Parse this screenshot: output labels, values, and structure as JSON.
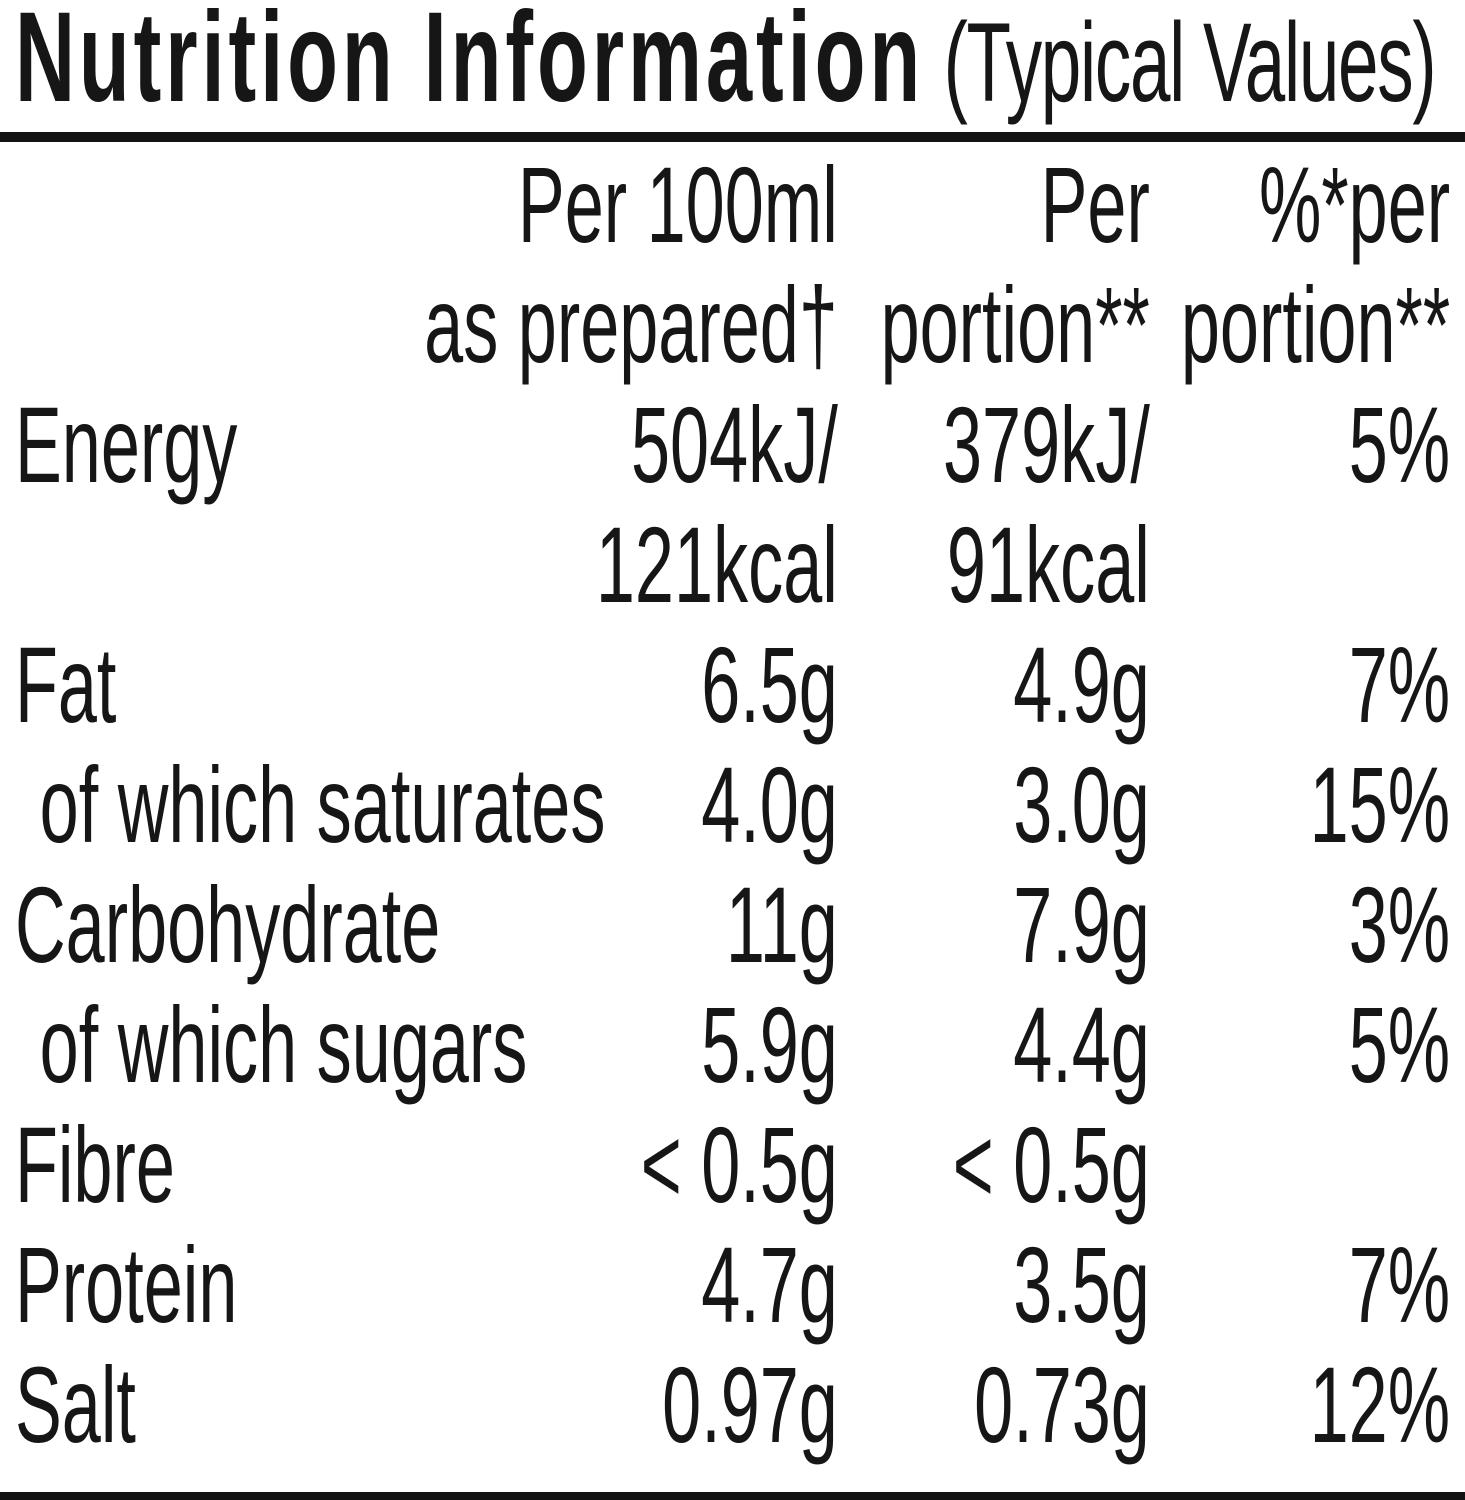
{
  "title": {
    "main": "Nutrition Information",
    "qualifier": "(Typical Values)"
  },
  "header": {
    "per100ml": {
      "line1": "Per 100ml",
      "line2": "as prepared†"
    },
    "portion": {
      "line1": "Per",
      "line2": "portion**"
    },
    "percent": {
      "line1": "%*per",
      "line2": "portion**"
    }
  },
  "rows": [
    {
      "label": "Energy",
      "per100": [
        "504kJ/",
        "121kcal"
      ],
      "portion": [
        "379kJ/",
        "91kcal"
      ],
      "pct": "5%"
    },
    {
      "label": "Fat",
      "per100": [
        "6.5g"
      ],
      "portion": [
        "4.9g"
      ],
      "pct": "7%"
    },
    {
      "label": "of which saturates",
      "per100": [
        "4.0g"
      ],
      "portion": [
        "3.0g"
      ],
      "pct": "15%"
    },
    {
      "label": "Carbohydrate",
      "per100": [
        "11g"
      ],
      "portion": [
        "7.9g"
      ],
      "pct": "3%"
    },
    {
      "label": "of which sugars",
      "per100": [
        "5.9g"
      ],
      "portion": [
        "4.4g"
      ],
      "pct": "5%"
    },
    {
      "label": "Fibre",
      "per100": [
        "< 0.5g"
      ],
      "portion": [
        "< 0.5g"
      ],
      "pct": ""
    },
    {
      "label": "Protein",
      "per100": [
        "4.7g"
      ],
      "portion": [
        "3.5g"
      ],
      "pct": "7%"
    },
    {
      "label": "Salt",
      "per100": [
        "0.97g"
      ],
      "portion": [
        "0.73g"
      ],
      "pct": "12%"
    }
  ],
  "colors": {
    "background": "#ffffff",
    "text": "#161616",
    "rule": "#131313"
  }
}
